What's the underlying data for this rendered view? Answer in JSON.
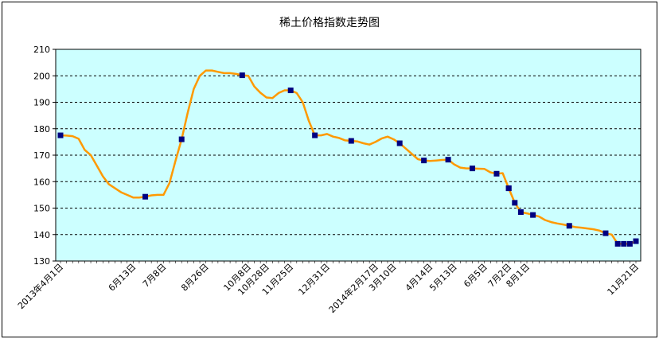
{
  "chart_data": {
    "type": "line",
    "title": "稀土价格指数走势图",
    "xlabel": "",
    "ylabel": "",
    "ylim": [
      130,
      210
    ],
    "yticks": [
      130,
      140,
      150,
      160,
      170,
      180,
      190,
      200,
      210
    ],
    "grid": "horizontal dashed",
    "legend": "none",
    "x_tick_labels": [
      "2013年4月1日",
      "6月13日",
      "7月8日",
      "8月26日",
      "10月8日",
      "10月28日",
      "11月25日",
      "12月31日",
      "2014年2月17日",
      "3月10日",
      "4月14日",
      "5月13日",
      "6月5日",
      "7月2日",
      "8月1日",
      "11月21日"
    ],
    "x_tick_index": [
      0,
      12,
      17,
      24,
      31,
      34,
      38,
      44,
      52,
      55,
      61,
      65,
      70,
      74,
      77,
      95
    ],
    "series": [
      {
        "values": [
          177.5,
          177.4,
          177.2,
          176.2,
          172,
          170,
          166,
          162,
          159,
          157.5,
          156,
          155,
          154,
          154,
          154.3,
          154.8,
          155,
          155,
          159.5,
          168,
          176,
          186,
          195,
          200,
          202,
          202,
          201.5,
          201,
          201,
          200.7,
          200.2,
          200,
          196,
          193.6,
          191.8,
          191.6,
          193.5,
          194.5,
          194.5,
          193.5,
          190,
          183,
          177.5,
          177.5,
          178,
          177,
          176.5,
          175.6,
          175.4,
          175.2,
          174.5,
          174,
          175,
          176.3,
          177,
          176,
          174.5,
          172.5,
          170.5,
          168.5,
          168,
          167.8,
          168,
          168.2,
          168.3,
          166.5,
          165.3,
          165,
          165,
          164.9,
          164.8,
          163.5,
          163,
          163.2,
          157.5,
          152,
          148.5,
          148,
          147.4,
          146.8,
          145.5,
          144.7,
          144.2,
          143.8,
          143.3,
          142.8,
          142.6,
          142.3,
          142,
          141.5,
          140.5,
          140,
          136.5,
          136.5,
          136.5,
          137.5
        ],
        "color": "#ff9900",
        "marker_color": "#000080",
        "marker_index": [
          0,
          14,
          20,
          30,
          38,
          42,
          48,
          56,
          60,
          64,
          68,
          72,
          74,
          74,
          75,
          76,
          78,
          84,
          90,
          92,
          93,
          94,
          95
        ]
      }
    ]
  }
}
